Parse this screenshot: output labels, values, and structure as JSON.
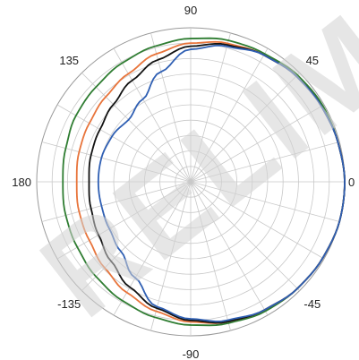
{
  "chart_data": {
    "type": "line",
    "projection": "polar",
    "angle_units": "degrees",
    "radial_range": [
      0,
      1
    ],
    "radial_grid_rings": 10,
    "angular_grid_step": 15,
    "grid": true,
    "tick_labels": [
      {
        "angle": 90,
        "text": "90"
      },
      {
        "angle": 45,
        "text": "45"
      },
      {
        "angle": 135,
        "text": "135"
      },
      {
        "angle": 180,
        "text": "180"
      },
      {
        "angle": 0,
        "text": "0"
      },
      {
        "angle": -135,
        "text": "-135"
      },
      {
        "angle": -45,
        "text": "-45"
      },
      {
        "angle": -90,
        "text": "-90"
      }
    ],
    "watermark": "RELIM",
    "theta": [
      0,
      15,
      30,
      45,
      60,
      75,
      90,
      105,
      120,
      135,
      150,
      165,
      180,
      195,
      210,
      225,
      240,
      255,
      270,
      285,
      300,
      315,
      330,
      345
    ],
    "series": [
      {
        "color": "#2f7d32",
        "r": [
          1.0,
          0.99,
          0.99,
          0.98,
          0.96,
          0.95,
          0.93,
          0.91,
          0.89,
          0.87,
          0.86,
          0.84,
          0.83,
          0.84,
          0.85,
          0.87,
          0.89,
          0.91,
          0.93,
          0.95,
          0.97,
          0.98,
          0.99,
          1.0
        ]
      },
      {
        "color": "#e8743b",
        "r": [
          1.0,
          0.99,
          0.98,
          0.97,
          0.95,
          0.93,
          0.9,
          0.86,
          0.81,
          0.78,
          0.76,
          0.75,
          0.74,
          0.75,
          0.76,
          0.79,
          0.83,
          0.87,
          0.91,
          0.94,
          0.96,
          0.98,
          0.99,
          1.0
        ]
      },
      {
        "color": "#111111",
        "r": [
          1.0,
          0.99,
          0.98,
          0.97,
          0.95,
          0.92,
          0.88,
          0.82,
          0.76,
          0.71,
          0.68,
          0.67,
          0.66,
          0.67,
          0.69,
          0.73,
          0.79,
          0.85,
          0.9,
          0.94,
          0.96,
          0.98,
          0.99,
          1.0
        ]
      },
      {
        "color": "#2f5fb3",
        "r": [
          1.0,
          0.99,
          0.98,
          0.97,
          0.95,
          0.91,
          0.86,
          0.74,
          0.62,
          0.57,
          0.59,
          0.6,
          0.6,
          0.6,
          0.61,
          0.64,
          0.72,
          0.84,
          0.89,
          0.93,
          0.96,
          0.98,
          0.99,
          1.0
        ]
      }
    ]
  }
}
